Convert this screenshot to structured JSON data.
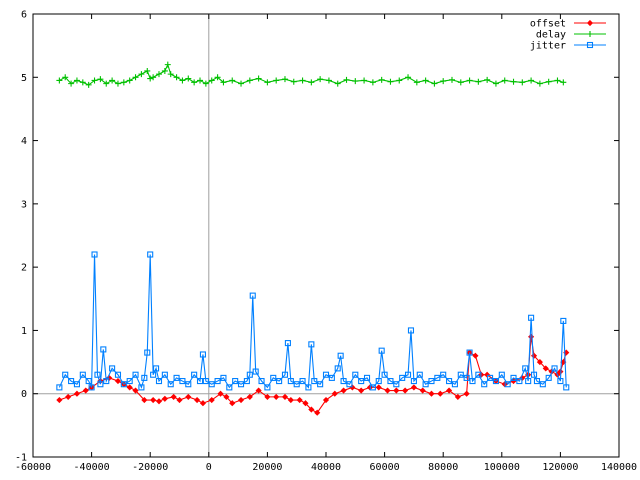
{
  "chart_data": {
    "type": "line",
    "title": "",
    "xlabel": "",
    "ylabel": "",
    "xlim": [
      -60000,
      140000
    ],
    "ylim": [
      -1,
      6
    ],
    "grid": false,
    "legend_position": "top-right",
    "x_ticks": [
      -60000,
      -40000,
      -20000,
      0,
      20000,
      40000,
      60000,
      80000,
      100000,
      120000,
      140000
    ],
    "y_ticks": [
      -1,
      0,
      1,
      2,
      3,
      4,
      5,
      6
    ],
    "zero_axes": true,
    "series": [
      {
        "name": "offset",
        "color": "#ff0000",
        "marker": "diamond",
        "x": [
          -51000,
          -48000,
          -45000,
          -42000,
          -40000,
          -37000,
          -34000,
          -31000,
          -29000,
          -27000,
          -25000,
          -22000,
          -19000,
          -17000,
          -15000,
          -12000,
          -10000,
          -7000,
          -4000,
          -2000,
          1000,
          4000,
          6000,
          8000,
          11000,
          14000,
          17000,
          20000,
          23000,
          26000,
          28000,
          31000,
          33000,
          35000,
          37000,
          40000,
          43000,
          46000,
          49000,
          52000,
          55000,
          58000,
          61000,
          64000,
          67000,
          70000,
          73000,
          76000,
          79000,
          82000,
          85000,
          88000,
          89000,
          91000,
          93000,
          95000,
          98000,
          101000,
          104000,
          107000,
          109000,
          110000,
          111000,
          113000,
          115000,
          117000,
          119000,
          120000,
          121000,
          122000
        ],
        "y": [
          -0.1,
          -0.05,
          0.0,
          0.05,
          0.1,
          0.2,
          0.25,
          0.2,
          0.15,
          0.1,
          0.05,
          -0.1,
          -0.1,
          -0.12,
          -0.08,
          -0.05,
          -0.1,
          -0.05,
          -0.1,
          -0.15,
          -0.1,
          0.0,
          -0.05,
          -0.15,
          -0.1,
          -0.05,
          0.05,
          -0.05,
          -0.05,
          -0.05,
          -0.1,
          -0.1,
          -0.15,
          -0.25,
          -0.3,
          -0.1,
          0.0,
          0.05,
          0.1,
          0.05,
          0.1,
          0.1,
          0.05,
          0.05,
          0.05,
          0.1,
          0.05,
          0.0,
          0.0,
          0.05,
          -0.05,
          0.0,
          0.65,
          0.6,
          0.3,
          0.3,
          0.2,
          0.15,
          0.2,
          0.25,
          0.3,
          0.9,
          0.6,
          0.5,
          0.4,
          0.35,
          0.3,
          0.35,
          0.5,
          0.65
        ]
      },
      {
        "name": "delay",
        "color": "#00c000",
        "marker": "plus",
        "x": [
          -51000,
          -49000,
          -47000,
          -45000,
          -43000,
          -41000,
          -39000,
          -37000,
          -35000,
          -33000,
          -31000,
          -29000,
          -27000,
          -25000,
          -23000,
          -21000,
          -20000,
          -19000,
          -17000,
          -15000,
          -14000,
          -13000,
          -11000,
          -9000,
          -7000,
          -5000,
          -3000,
          -1000,
          1000,
          3000,
          5000,
          8000,
          11000,
          14000,
          17000,
          20000,
          23000,
          26000,
          29000,
          32000,
          35000,
          38000,
          41000,
          44000,
          47000,
          50000,
          53000,
          56000,
          59000,
          62000,
          65000,
          68000,
          71000,
          74000,
          77000,
          80000,
          83000,
          86000,
          89000,
          92000,
          95000,
          98000,
          101000,
          104000,
          107000,
          110000,
          113000,
          116000,
          119000,
          121000
        ],
        "y": [
          4.95,
          5.0,
          4.9,
          4.95,
          4.92,
          4.88,
          4.95,
          4.97,
          4.9,
          4.95,
          4.9,
          4.92,
          4.95,
          5.0,
          5.05,
          5.1,
          4.98,
          5.0,
          5.05,
          5.1,
          5.2,
          5.05,
          5.0,
          4.95,
          4.98,
          4.92,
          4.95,
          4.9,
          4.95,
          5.0,
          4.92,
          4.95,
          4.9,
          4.95,
          4.98,
          4.92,
          4.95,
          4.97,
          4.93,
          4.95,
          4.92,
          4.97,
          4.95,
          4.9,
          4.96,
          4.94,
          4.95,
          4.92,
          4.96,
          4.93,
          4.95,
          5.0,
          4.92,
          4.95,
          4.9,
          4.94,
          4.96,
          4.92,
          4.95,
          4.93,
          4.96,
          4.9,
          4.95,
          4.93,
          4.92,
          4.95,
          4.9,
          4.93,
          4.95,
          4.92
        ]
      },
      {
        "name": "jitter",
        "color": "#0080ff",
        "marker": "square",
        "x": [
          -51000,
          -49000,
          -47000,
          -45000,
          -43000,
          -41000,
          -40000,
          -39000,
          -38000,
          -37000,
          -36000,
          -35000,
          -33000,
          -31000,
          -29000,
          -27000,
          -25000,
          -23000,
          -22000,
          -21000,
          -20000,
          -19000,
          -18000,
          -17000,
          -15000,
          -13000,
          -11000,
          -9000,
          -7000,
          -5000,
          -3000,
          -2000,
          -1000,
          1000,
          3000,
          5000,
          7000,
          9000,
          11000,
          13000,
          14000,
          15000,
          16000,
          18000,
          20000,
          22000,
          24000,
          26000,
          27000,
          28000,
          30000,
          32000,
          34000,
          35000,
          36000,
          38000,
          40000,
          42000,
          44000,
          45000,
          46000,
          48000,
          50000,
          52000,
          54000,
          56000,
          58000,
          59000,
          60000,
          62000,
          64000,
          66000,
          68000,
          69000,
          70000,
          72000,
          74000,
          76000,
          78000,
          80000,
          82000,
          84000,
          86000,
          88000,
          89000,
          90000,
          92000,
          94000,
          96000,
          98000,
          100000,
          102000,
          104000,
          106000,
          108000,
          109000,
          110000,
          111000,
          112000,
          114000,
          116000,
          118000,
          120000,
          121000,
          122000
        ],
        "y": [
          0.1,
          0.3,
          0.2,
          0.15,
          0.3,
          0.2,
          0.1,
          2.2,
          0.3,
          0.15,
          0.7,
          0.2,
          0.4,
          0.3,
          0.15,
          0.2,
          0.3,
          0.1,
          0.25,
          0.65,
          2.2,
          0.3,
          0.4,
          0.2,
          0.3,
          0.15,
          0.25,
          0.2,
          0.15,
          0.3,
          0.2,
          0.62,
          0.2,
          0.15,
          0.2,
          0.25,
          0.1,
          0.2,
          0.15,
          0.2,
          0.3,
          1.55,
          0.35,
          0.2,
          0.1,
          0.25,
          0.2,
          0.3,
          0.8,
          0.2,
          0.15,
          0.2,
          0.1,
          0.78,
          0.2,
          0.15,
          0.3,
          0.25,
          0.4,
          0.6,
          0.2,
          0.15,
          0.3,
          0.2,
          0.25,
          0.1,
          0.2,
          0.68,
          0.3,
          0.2,
          0.15,
          0.25,
          0.3,
          1.0,
          0.2,
          0.3,
          0.15,
          0.2,
          0.25,
          0.3,
          0.2,
          0.15,
          0.3,
          0.25,
          0.65,
          0.2,
          0.3,
          0.15,
          0.25,
          0.2,
          0.3,
          0.15,
          0.25,
          0.2,
          0.4,
          0.2,
          1.2,
          0.3,
          0.2,
          0.15,
          0.25,
          0.4,
          0.2,
          1.15,
          0.1
        ]
      }
    ]
  }
}
